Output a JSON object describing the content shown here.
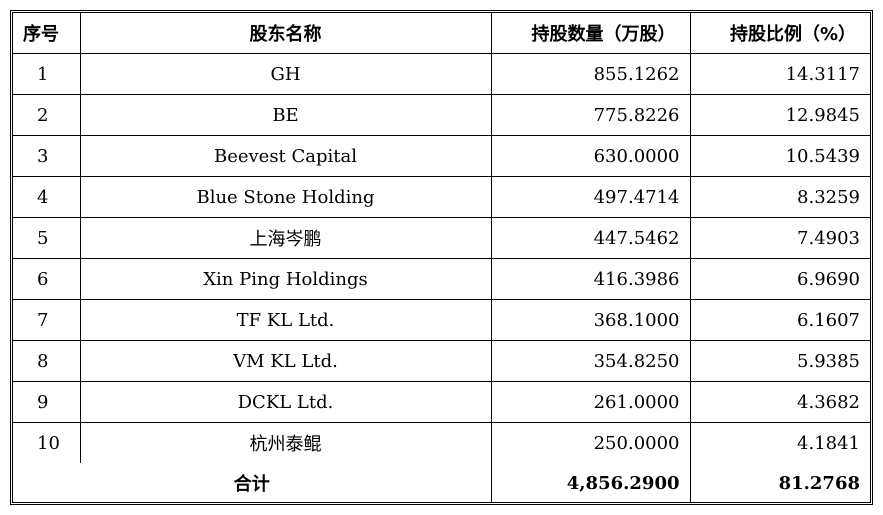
{
  "table": {
    "headers": {
      "no": "序号",
      "name": "股东名称",
      "qty": "持股数量（万股）",
      "pct": "持股比例（%）"
    },
    "rows": [
      {
        "no": "1",
        "name": "GH",
        "qty": "855.1262",
        "pct": "14.3117"
      },
      {
        "no": "2",
        "name": "BE",
        "qty": "775.8226",
        "pct": "12.9845"
      },
      {
        "no": "3",
        "name": "Beevest Capital",
        "qty": "630.0000",
        "pct": "10.5439"
      },
      {
        "no": "4",
        "name": "Blue Stone Holding",
        "qty": "497.4714",
        "pct": "8.3259"
      },
      {
        "no": "5",
        "name": "上海岑鹏",
        "qty": "447.5462",
        "pct": "7.4903"
      },
      {
        "no": "6",
        "name": "Xin Ping Holdings",
        "qty": "416.3986",
        "pct": "6.9690"
      },
      {
        "no": "7",
        "name": "TF KL Ltd.",
        "qty": "368.1000",
        "pct": "6.1607"
      },
      {
        "no": "8",
        "name": "VM KL Ltd.",
        "qty": "354.8250",
        "pct": "5.9385"
      },
      {
        "no": "9",
        "name": "DCKL Ltd.",
        "qty": "261.0000",
        "pct": "4.3682"
      },
      {
        "no": "10",
        "name": "杭州泰鲲",
        "qty": "250.0000",
        "pct": "4.1841"
      }
    ],
    "total": {
      "label": "合计",
      "qty": "4,856.2900",
      "pct": "81.2768"
    }
  }
}
